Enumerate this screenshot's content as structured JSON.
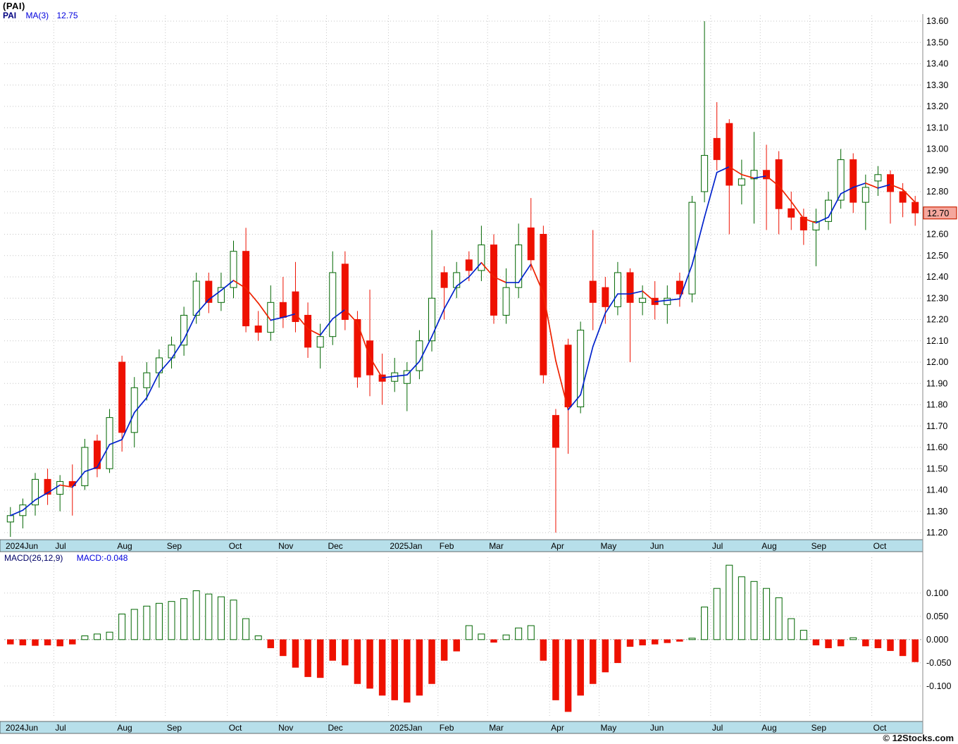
{
  "header": {
    "title": "(PAI)",
    "symbol": "PAI",
    "ma_label": "MA(3)",
    "ma_value": "12.75"
  },
  "macd_header": {
    "label": "MACD(26,12,9)",
    "value": "MACD:-0.048"
  },
  "footer": {
    "watermark": "© 12Stocks.com"
  },
  "price_axis": {
    "ticks": [
      "13.60",
      "13.50",
      "13.40",
      "13.30",
      "13.20",
      "13.10",
      "13.00",
      "12.90",
      "12.80",
      "12.70",
      "12.60",
      "12.50",
      "12.40",
      "12.30",
      "12.20",
      "12.10",
      "12.00",
      "11.90",
      "11.80",
      "11.70",
      "11.60",
      "11.50",
      "11.40",
      "11.30",
      "11.20"
    ],
    "last_price": "12.70"
  },
  "macd_axis": {
    "ticks": [
      "0.100",
      "0.050",
      "0.000",
      "-0.050",
      "-0.100"
    ]
  },
  "colors": {
    "up": "#006600",
    "down": "#ee1100",
    "ma_up": "#0022cc",
    "ma_down": "#ee2200",
    "band": "#b7dfea",
    "grid": "#c6c6c6",
    "tag_bg": "#f5a79d",
    "tag_border": "#cc2200"
  },
  "chart_data": {
    "type": "candlestick",
    "symbol": "PAI",
    "title": "(PAI)",
    "ma_period": 3,
    "ma_last": 12.75,
    "macd_params": "26,12,9",
    "macd_last": -0.048,
    "price_range": [
      11.2,
      13.6
    ],
    "macd_range": [
      -0.17,
      0.18
    ],
    "candle_format": "[open, high, low, close]",
    "months": [
      {
        "label": "2024Jun",
        "weeks": 4
      },
      {
        "label": "Jul",
        "weeks": 5
      },
      {
        "label": "Aug",
        "weeks": 4
      },
      {
        "label": "Sep",
        "weeks": 5
      },
      {
        "label": "Oct",
        "weeks": 4
      },
      {
        "label": "Nov",
        "weeks": 4
      },
      {
        "label": "Dec",
        "weeks": 5
      },
      {
        "label": "2025Jan",
        "weeks": 4
      },
      {
        "label": "Feb",
        "weeks": 4
      },
      {
        "label": "Mar",
        "weeks": 5
      },
      {
        "label": "Apr",
        "weeks": 4
      },
      {
        "label": "May",
        "weeks": 4
      },
      {
        "label": "Jun",
        "weeks": 5
      },
      {
        "label": "Jul",
        "weeks": 4
      },
      {
        "label": "Aug",
        "weeks": 4
      },
      {
        "label": "Sep",
        "weeks": 5
      },
      {
        "label": "Oct",
        "weeks": 4
      }
    ],
    "candles": [
      [
        11.25,
        11.32,
        11.18,
        11.28
      ],
      [
        11.28,
        11.36,
        11.22,
        11.33
      ],
      [
        11.33,
        11.48,
        11.28,
        11.45
      ],
      [
        11.45,
        11.5,
        11.33,
        11.38
      ],
      [
        11.38,
        11.47,
        11.3,
        11.44
      ],
      [
        11.44,
        11.52,
        11.28,
        11.42
      ],
      [
        11.42,
        11.64,
        11.4,
        11.6
      ],
      [
        11.63,
        11.66,
        11.46,
        11.5
      ],
      [
        11.5,
        11.78,
        11.48,
        11.74
      ],
      [
        12.0,
        12.03,
        11.58,
        11.67
      ],
      [
        11.67,
        11.93,
        11.6,
        11.88
      ],
      [
        11.88,
        12.0,
        11.82,
        11.95
      ],
      [
        11.95,
        12.06,
        11.88,
        12.02
      ],
      [
        12.02,
        12.12,
        11.97,
        12.08
      ],
      [
        12.08,
        12.26,
        12.03,
        12.22
      ],
      [
        12.22,
        12.42,
        12.18,
        12.38
      ],
      [
        12.38,
        12.42,
        12.23,
        12.28
      ],
      [
        12.28,
        12.42,
        12.24,
        12.35
      ],
      [
        12.35,
        12.57,
        12.3,
        12.52
      ],
      [
        12.52,
        12.63,
        12.14,
        12.17
      ],
      [
        12.17,
        12.24,
        12.1,
        12.14
      ],
      [
        12.14,
        12.36,
        12.1,
        12.28
      ],
      [
        12.28,
        12.4,
        12.16,
        12.21
      ],
      [
        12.33,
        12.47,
        12.14,
        12.19
      ],
      [
        12.22,
        12.28,
        12.02,
        12.07
      ],
      [
        12.07,
        12.18,
        11.97,
        12.12
      ],
      [
        12.12,
        12.52,
        12.08,
        12.42
      ],
      [
        12.46,
        12.52,
        12.15,
        12.2
      ],
      [
        12.2,
        12.24,
        11.88,
        11.93
      ],
      [
        12.1,
        12.34,
        11.84,
        11.94
      ],
      [
        11.94,
        12.04,
        11.8,
        11.91
      ],
      [
        11.91,
        12.02,
        11.86,
        11.95
      ],
      [
        11.9,
        12.0,
        11.77,
        11.96
      ],
      [
        11.96,
        12.15,
        11.92,
        12.1
      ],
      [
        12.1,
        12.62,
        12.05,
        12.3
      ],
      [
        12.42,
        12.45,
        12.2,
        12.35
      ],
      [
        12.35,
        12.47,
        12.3,
        12.42
      ],
      [
        12.48,
        12.52,
        12.38,
        12.43
      ],
      [
        12.43,
        12.64,
        12.38,
        12.55
      ],
      [
        12.55,
        12.6,
        12.18,
        12.22
      ],
      [
        12.22,
        12.44,
        12.18,
        12.35
      ],
      [
        12.35,
        12.65,
        12.3,
        12.55
      ],
      [
        12.63,
        12.77,
        12.43,
        12.48
      ],
      [
        12.6,
        12.64,
        11.9,
        11.94
      ],
      [
        11.75,
        11.78,
        11.2,
        11.6
      ],
      [
        12.08,
        12.11,
        11.57,
        11.79
      ],
      [
        11.79,
        12.19,
        11.76,
        12.15
      ],
      [
        12.38,
        12.62,
        12.15,
        12.28
      ],
      [
        12.35,
        12.4,
        12.18,
        12.26
      ],
      [
        12.26,
        12.47,
        12.22,
        12.42
      ],
      [
        12.42,
        12.44,
        12.0,
        12.28
      ],
      [
        12.28,
        12.36,
        12.22,
        12.3
      ],
      [
        12.3,
        12.38,
        12.2,
        12.27
      ],
      [
        12.27,
        12.36,
        12.18,
        12.3
      ],
      [
        12.38,
        12.42,
        12.26,
        12.32
      ],
      [
        12.32,
        12.78,
        12.28,
        12.75
      ],
      [
        12.8,
        13.6,
        12.75,
        12.97
      ],
      [
        13.05,
        13.22,
        12.9,
        12.95
      ],
      [
        13.12,
        13.14,
        12.6,
        12.83
      ],
      [
        12.83,
        12.95,
        12.74,
        12.86
      ],
      [
        12.86,
        13.08,
        12.65,
        12.9
      ],
      [
        12.9,
        13.02,
        12.62,
        12.86
      ],
      [
        12.95,
        12.99,
        12.6,
        12.72
      ],
      [
        12.72,
        12.8,
        12.62,
        12.68
      ],
      [
        12.68,
        12.72,
        12.55,
        12.62
      ],
      [
        12.62,
        12.72,
        12.45,
        12.66
      ],
      [
        12.66,
        12.8,
        12.62,
        12.76
      ],
      [
        12.76,
        13.0,
        12.72,
        12.95
      ],
      [
        12.95,
        12.98,
        12.7,
        12.75
      ],
      [
        12.75,
        12.88,
        12.62,
        12.82
      ],
      [
        12.85,
        12.92,
        12.78,
        12.88
      ],
      [
        12.88,
        12.9,
        12.65,
        12.8
      ],
      [
        12.8,
        12.84,
        12.68,
        12.75
      ],
      [
        12.75,
        12.78,
        12.64,
        12.7
      ]
    ],
    "macd": [
      -0.01,
      -0.012,
      -0.013,
      -0.012,
      -0.014,
      -0.01,
      0.008,
      0.012,
      0.016,
      0.055,
      0.065,
      0.072,
      0.078,
      0.082,
      0.088,
      0.105,
      0.098,
      0.092,
      0.085,
      0.045,
      0.008,
      -0.018,
      -0.035,
      -0.06,
      -0.08,
      -0.082,
      -0.045,
      -0.055,
      -0.095,
      -0.105,
      -0.12,
      -0.13,
      -0.135,
      -0.12,
      -0.095,
      -0.045,
      -0.025,
      0.03,
      0.012,
      -0.006,
      0.01,
      0.025,
      0.03,
      -0.045,
      -0.13,
      -0.155,
      -0.12,
      -0.095,
      -0.07,
      -0.05,
      -0.015,
      -0.012,
      -0.01,
      -0.007,
      -0.004,
      0.003,
      0.07,
      0.11,
      0.16,
      0.135,
      0.125,
      0.11,
      0.09,
      0.045,
      0.02,
      -0.012,
      -0.018,
      -0.014,
      0.004,
      -0.014,
      -0.018,
      -0.024,
      -0.035,
      -0.048
    ]
  }
}
